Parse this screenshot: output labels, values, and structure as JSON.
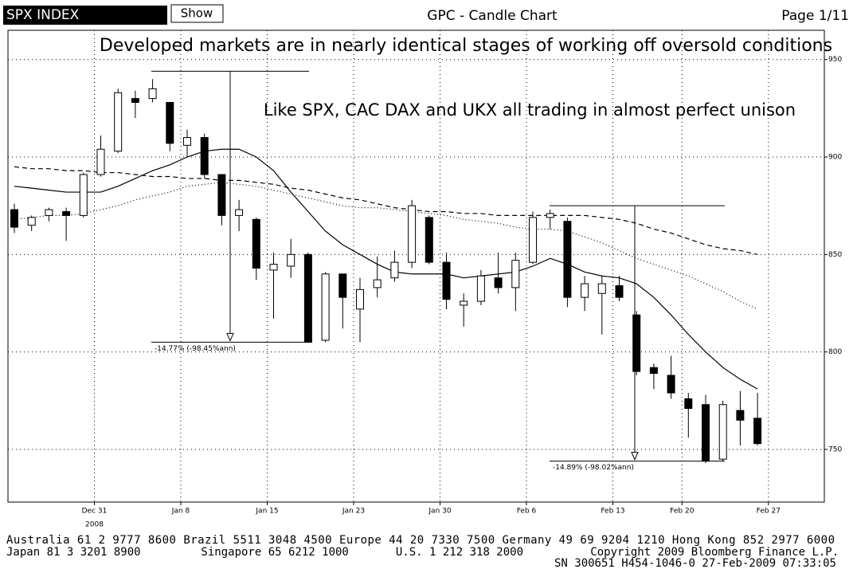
{
  "header": {
    "ticker": "SPX INDEX",
    "button": "Show",
    "page": "Page 1/11"
  },
  "chart_data": {
    "type": "candlestick",
    "title": "GPC - Candle Chart",
    "annotations": [
      "Developed markets are in nearly identical stages of working off oversold conditions",
      "Like SPX, CAC DAX and UKX all trading in almost perfect unison"
    ],
    "categories": [
      null,
      null,
      null,
      null,
      null,
      "Dec 31",
      null,
      null,
      null,
      null,
      "Jan 8",
      null,
      null,
      null,
      null,
      "Jan 15",
      null,
      null,
      null,
      null,
      "Jan 23",
      null,
      null,
      null,
      null,
      "Jan 30",
      null,
      null,
      null,
      null,
      "Feb 6",
      null,
      null,
      null,
      null,
      "Feb 13",
      null,
      null,
      null,
      "Feb 20",
      null,
      null,
      null,
      null,
      "Feb 27"
    ],
    "year_label": "2008",
    "ohlc": {
      "open": [
        873,
        865,
        870,
        872,
        870,
        891,
        903,
        930,
        930,
        928,
        906,
        910,
        891,
        870,
        868,
        842,
        844,
        850,
        806,
        840,
        822,
        833,
        838,
        846,
        869,
        846,
        824,
        826,
        838,
        833,
        846,
        869,
        867,
        828,
        830,
        834,
        819,
        792,
        788,
        776,
        773,
        745,
        770,
        766,
        null
      ],
      "high": [
        876,
        870,
        874,
        874,
        892,
        911,
        935,
        934,
        940,
        928,
        914,
        912,
        891,
        878,
        869,
        851,
        858,
        851,
        841,
        840,
        838,
        849,
        852,
        878,
        870,
        851,
        830,
        842,
        851,
        851,
        872,
        873,
        869,
        839,
        839,
        839,
        821,
        794,
        798,
        779,
        778,
        775,
        780,
        779,
        null
      ],
      "low": [
        861,
        862,
        867,
        857,
        869,
        890,
        902,
        920,
        928,
        903,
        900,
        889,
        865,
        862,
        837,
        817,
        838,
        805,
        805,
        812,
        805,
        828,
        836,
        843,
        845,
        822,
        813,
        824,
        830,
        821,
        845,
        863,
        823,
        821,
        809,
        826,
        788,
        781,
        776,
        756,
        743,
        744,
        752,
        752,
        null
      ],
      "close": [
        864,
        869,
        873,
        870,
        891,
        904,
        933,
        928,
        935,
        907,
        910,
        891,
        870,
        873,
        843,
        845,
        850,
        805,
        840,
        828,
        832,
        837,
        846,
        875,
        846,
        827,
        826,
        839,
        833,
        847,
        869,
        871,
        828,
        835,
        835,
        828,
        790,
        789,
        779,
        771,
        744,
        773,
        765,
        753,
        null
      ]
    },
    "lines": [
      {
        "style": "solid",
        "color": "#000000",
        "values": [
          885,
          884,
          883,
          882,
          882,
          882,
          885,
          889,
          893,
          896,
          900,
          903,
          904,
          904,
          900,
          893,
          882,
          872,
          862,
          855,
          850,
          845,
          841,
          840,
          840,
          840,
          838,
          839,
          840,
          841,
          844,
          848,
          845,
          841,
          839,
          838,
          835,
          828,
          819,
          809,
          800,
          792,
          786,
          781,
          null
        ]
      },
      {
        "style": "dashed",
        "color": "#000000",
        "values": [
          895,
          894,
          894,
          893,
          893,
          892,
          892,
          891,
          890,
          890,
          889,
          889,
          888,
          888,
          887,
          886,
          884,
          883,
          881,
          879,
          878,
          876,
          874,
          873,
          872,
          872,
          871,
          871,
          870,
          870,
          870,
          870,
          870,
          870,
          869,
          868,
          866,
          863,
          861,
          858,
          855,
          853,
          852,
          850,
          null
        ]
      },
      {
        "style": "dotted",
        "color": "#000000",
        "values": [
          868,
          869,
          870,
          870,
          871,
          873,
          875,
          878,
          880,
          882,
          885,
          886,
          887,
          886,
          885,
          883,
          881,
          879,
          877,
          875,
          874,
          874,
          873,
          872,
          871,
          870,
          868,
          867,
          866,
          864,
          863,
          863,
          862,
          859,
          856,
          852,
          848,
          845,
          842,
          839,
          835,
          831,
          826,
          822,
          null
        ]
      }
    ],
    "measurements": [
      {
        "label": "-14.77% (-98.45%ann)",
        "high": 944,
        "low": 805
      },
      {
        "label": "-14.89% (-98.02%ann)",
        "high": 875,
        "low": 744
      }
    ],
    "ylim": [
      723,
      965
    ],
    "yticks": [
      750,
      800,
      850,
      900,
      950
    ],
    "grid": true
  },
  "footer": [
    "Australia 61 2 9777 8600 Brazil 5511 3048 4500 Europe 44 20 7330 7500 Germany 49 69 9204 1210 Hong Kong 852 2977 6000",
    "Japan 81 3 3201 8900         Singapore 65 6212 1000       U.S. 1 212 318 2000          Copyright 2009 Bloomberg Finance L.P.",
    "SN 300651 H454-1046-0 27-Feb-2009 07:33:05"
  ]
}
